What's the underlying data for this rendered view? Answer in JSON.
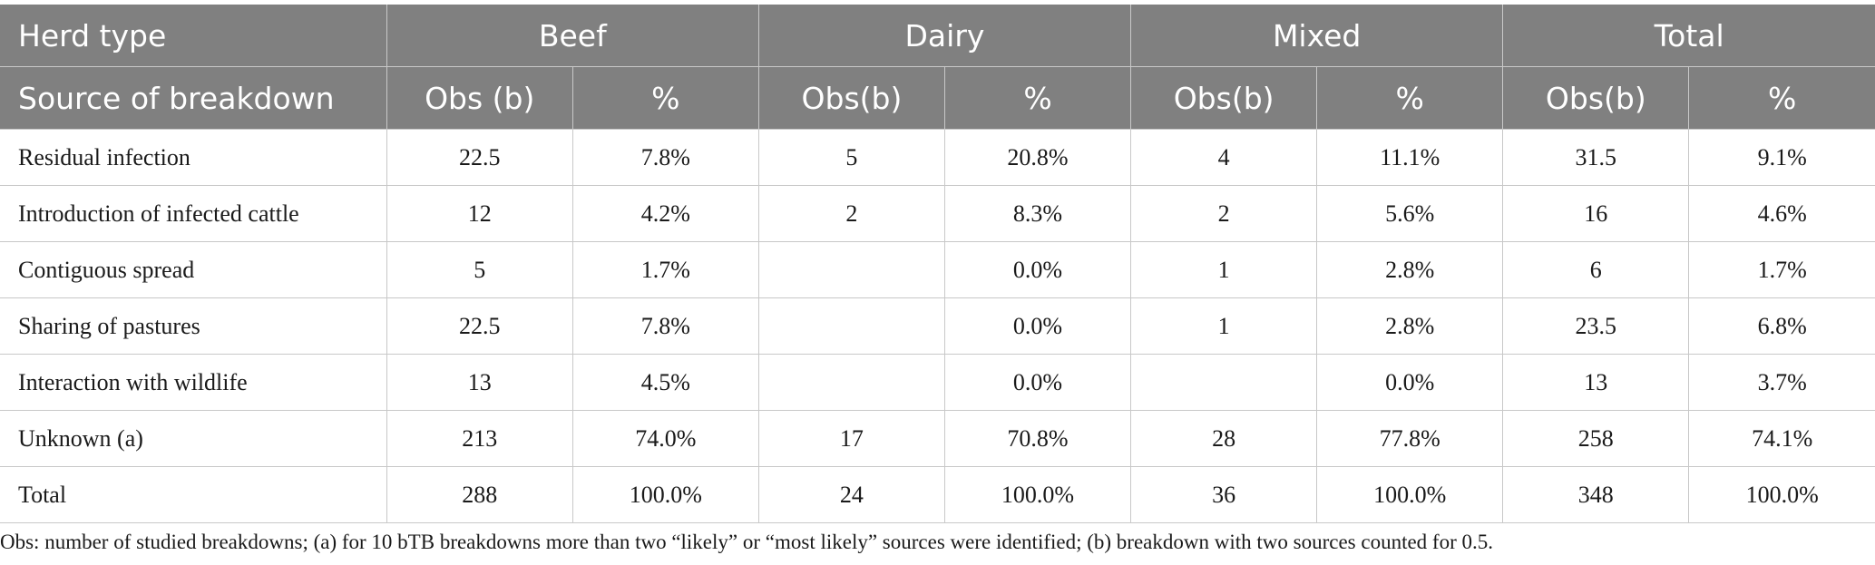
{
  "header": {
    "herd_type_label": "Herd type",
    "groups": [
      "Beef",
      "Dairy",
      "Mixed",
      "Total"
    ],
    "source_label": "Source of breakdown",
    "subcols": [
      "Obs (b)",
      "%",
      "Obs(b)",
      "%",
      "Obs(b)",
      "%",
      "Obs(b)",
      "%"
    ]
  },
  "rows": [
    {
      "label": "Residual infection",
      "cells": [
        "22.5",
        "7.8%",
        "5",
        "20.8%",
        "4",
        "11.1%",
        "31.5",
        "9.1%"
      ]
    },
    {
      "label": "Introduction of infected cattle",
      "cells": [
        "12",
        "4.2%",
        "2",
        "8.3%",
        "2",
        "5.6%",
        "16",
        "4.6%"
      ]
    },
    {
      "label": "Contiguous spread",
      "cells": [
        "5",
        "1.7%",
        "",
        "0.0%",
        "1",
        "2.8%",
        "6",
        "1.7%"
      ]
    },
    {
      "label": "Sharing of pastures",
      "cells": [
        "22.5",
        "7.8%",
        "",
        "0.0%",
        "1",
        "2.8%",
        "23.5",
        "6.8%"
      ]
    },
    {
      "label": "Interaction with wildlife",
      "cells": [
        "13",
        "4.5%",
        "",
        "0.0%",
        "",
        "0.0%",
        "13",
        "3.7%"
      ]
    },
    {
      "label": "Unknown (a)",
      "cells": [
        "213",
        "74.0%",
        "17",
        "70.8%",
        "28",
        "77.8%",
        "258",
        "74.1%"
      ]
    },
    {
      "label": "Total",
      "cells": [
        "288",
        "100.0%",
        "24",
        "100.0%",
        "36",
        "100.0%",
        "348",
        "100.0%"
      ]
    }
  ],
  "footnote": "Obs: number of studied breakdowns; (a) for 10 bTB breakdowns more than two “likely” or “most likely” sources were identified; (b) breakdown with two sources counted for 0.5."
}
